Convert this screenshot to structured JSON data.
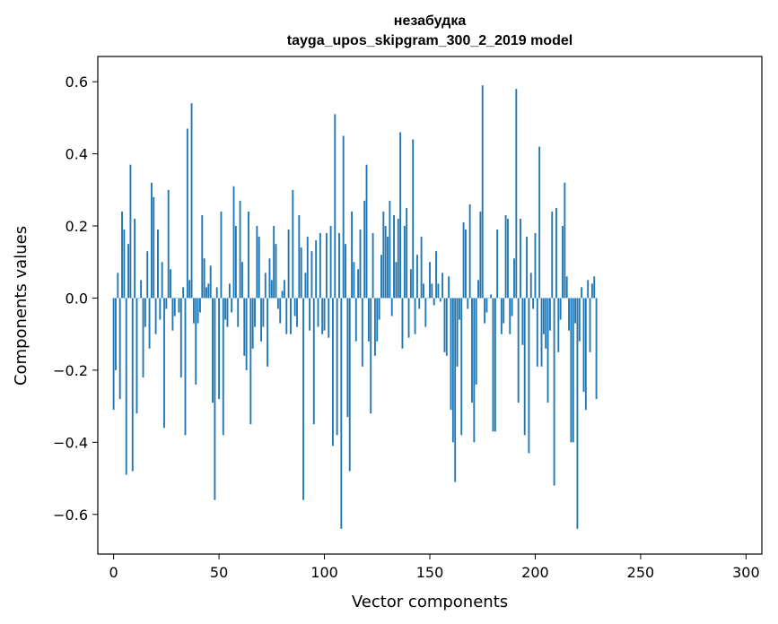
{
  "chart_data": {
    "type": "bar",
    "title": "незабудка",
    "subtitle": "tayga_upos_skipgram_300_2_2019 model",
    "xlabel": "Vector components",
    "ylabel": "Components values",
    "xlim": [
      -7.5,
      307.5
    ],
    "ylim": [
      -0.71,
      0.67
    ],
    "grid": false,
    "bar_color": "#1f77b4",
    "x_ticks": [
      0,
      50,
      100,
      150,
      200,
      250,
      300
    ],
    "x_tick_labels": [
      "0",
      "50",
      "100",
      "150",
      "200",
      "250",
      "300"
    ],
    "y_ticks": [
      -0.6,
      -0.4,
      -0.2,
      0.0,
      0.2,
      0.4,
      0.6
    ],
    "y_tick_labels": [
      "−0.6",
      "−0.4",
      "−0.2",
      "0.0",
      "0.2",
      "0.4",
      "0.6"
    ],
    "values": [
      -0.31,
      -0.2,
      0.07,
      -0.28,
      0.24,
      0.19,
      -0.49,
      0.15,
      0.37,
      -0.48,
      0.22,
      -0.32,
      0.0,
      0.05,
      -0.22,
      -0.08,
      0.13,
      -0.14,
      0.32,
      0.28,
      -0.1,
      0.19,
      -0.06,
      0.1,
      -0.36,
      -0.03,
      0.3,
      0.08,
      -0.09,
      -0.05,
      0.0,
      -0.04,
      -0.22,
      0.03,
      -0.38,
      0.47,
      0.05,
      0.54,
      -0.07,
      -0.24,
      -0.07,
      -0.04,
      0.23,
      0.11,
      0.03,
      0.04,
      0.09,
      -0.29,
      -0.56,
      0.03,
      -0.28,
      0.24,
      -0.38,
      -0.06,
      -0.08,
      0.04,
      -0.04,
      0.31,
      0.2,
      -0.08,
      0.27,
      0.1,
      -0.16,
      -0.2,
      0.24,
      -0.35,
      -0.14,
      -0.08,
      0.2,
      0.17,
      -0.12,
      -0.08,
      0.07,
      -0.19,
      0.11,
      0.05,
      0.2,
      0.15,
      -0.03,
      -0.07,
      0.02,
      0.05,
      -0.1,
      0.19,
      -0.1,
      0.3,
      -0.05,
      -0.08,
      0.23,
      0.14,
      -0.56,
      0.07,
      0.17,
      -0.09,
      0.13,
      -0.35,
      0.16,
      -0.08,
      0.18,
      -0.1,
      -0.09,
      0.18,
      -0.11,
      0.2,
      -0.41,
      0.51,
      -0.38,
      0.18,
      -0.64,
      0.45,
      0.15,
      -0.33,
      -0.48,
      0.24,
      0.1,
      -0.12,
      0.08,
      0.19,
      -0.19,
      0.27,
      0.37,
      -0.12,
      -0.32,
      0.18,
      -0.16,
      -0.12,
      -0.06,
      0.12,
      0.24,
      0.2,
      0.17,
      0.27,
      -0.05,
      0.23,
      0.1,
      0.22,
      0.46,
      -0.14,
      0.2,
      0.25,
      -0.11,
      0.08,
      0.44,
      -0.1,
      0.12,
      -0.03,
      0.17,
      0.04,
      -0.08,
      0.0,
      0.1,
      0.04,
      -0.02,
      0.13,
      0.04,
      -0.01,
      0.07,
      -0.15,
      -0.16,
      0.06,
      -0.31,
      -0.4,
      -0.51,
      -0.19,
      -0.06,
      -0.38,
      0.21,
      0.19,
      -0.03,
      0.26,
      -0.29,
      -0.4,
      -0.24,
      0.05,
      0.24,
      0.59,
      -0.07,
      -0.04,
      0.0,
      0.01,
      -0.37,
      -0.37,
      0.19,
      0.0,
      -0.1,
      -0.07,
      0.23,
      0.22,
      -0.1,
      -0.05,
      0.11,
      0.58,
      -0.29,
      0.22,
      -0.13,
      -0.38,
      0.17,
      -0.43,
      0.07,
      -0.03,
      0.18,
      -0.19,
      0.42,
      -0.19,
      -0.1,
      -0.14,
      -0.29,
      -0.09,
      0.24,
      -0.52,
      0.25,
      -0.15,
      -0.06,
      0.2,
      0.32,
      0.06,
      -0.09,
      -0.4,
      -0.4,
      -0.07,
      -0.64,
      -0.12,
      0.03,
      -0.26,
      -0.31,
      0.05,
      -0.15,
      0.04,
      0.06,
      -0.28
    ]
  }
}
